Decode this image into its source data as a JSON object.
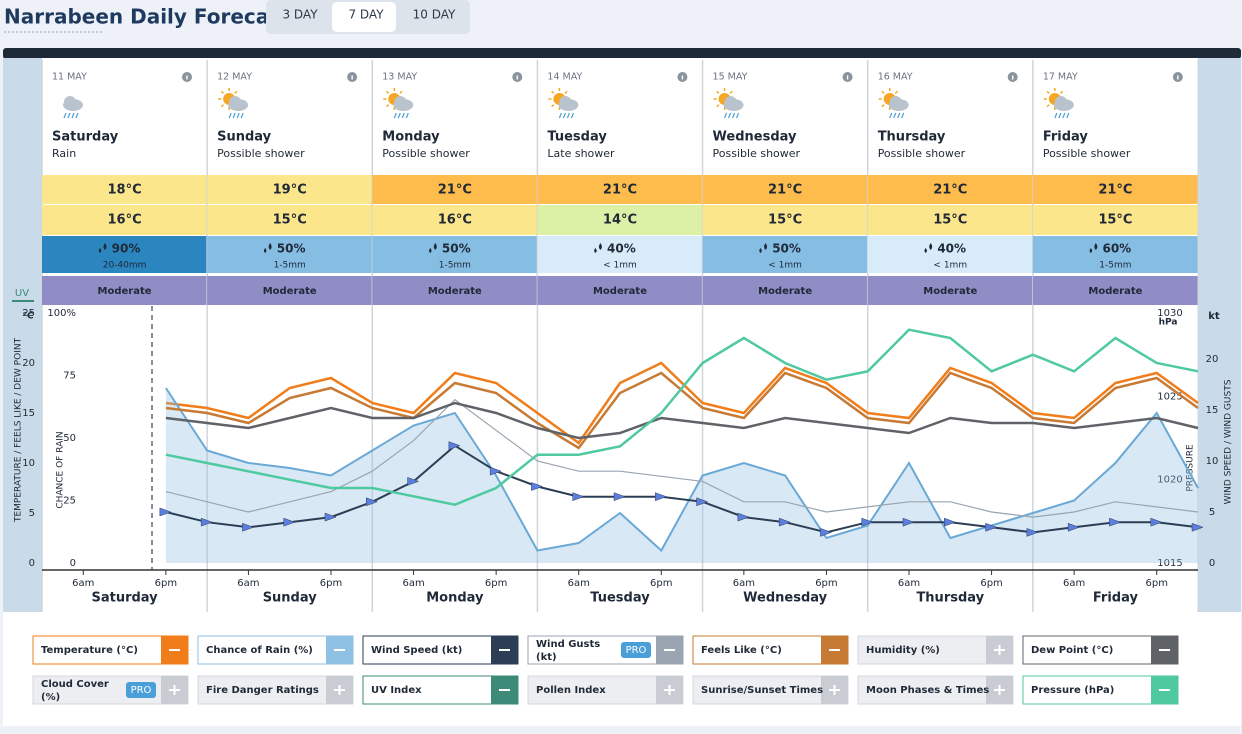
{
  "header": {
    "title": "Narrabeen Daily Forecast",
    "tabs": [
      "3 DAY",
      "7 DAY",
      "10 DAY"
    ],
    "active_tab": 1
  },
  "uv_label": "UV",
  "days": [
    {
      "date": "11 MAY",
      "name": "Saturday",
      "summary": "Rain",
      "icon": "rain",
      "max": "18°C",
      "min": "16°C",
      "rain": "90%",
      "rain_amount": "20-40mm",
      "uv": "Moderate",
      "max_color": "#fce68b",
      "min_color": "#fce68b",
      "rain_color": "#2b86c0"
    },
    {
      "date": "12 MAY",
      "name": "Sunday",
      "summary": "Possible shower",
      "icon": "sun-shower",
      "max": "19°C",
      "min": "15°C",
      "rain": "50%",
      "rain_amount": "1-5mm",
      "uv": "Moderate",
      "max_color": "#fce68b",
      "min_color": "#fce68b",
      "rain_color": "#86bde3"
    },
    {
      "date": "13 MAY",
      "name": "Monday",
      "summary": "Possible shower",
      "icon": "sun-shower",
      "max": "21°C",
      "min": "16°C",
      "rain": "50%",
      "rain_amount": "1-5mm",
      "uv": "Moderate",
      "max_color": "#fdbc4b",
      "min_color": "#fce68b",
      "rain_color": "#86bde3"
    },
    {
      "date": "14 MAY",
      "name": "Tuesday",
      "summary": "Late shower",
      "icon": "sun-shower",
      "max": "21°C",
      "min": "14°C",
      "rain": "40%",
      "rain_amount": "< 1mm",
      "uv": "Moderate",
      "max_color": "#fdbc4b",
      "min_color": "#dcf1a6",
      "rain_color": "#d7ebf8"
    },
    {
      "date": "15 MAY",
      "name": "Wednesday",
      "summary": "Possible shower",
      "icon": "sun-shower",
      "max": "21°C",
      "min": "15°C",
      "rain": "50%",
      "rain_amount": "< 1mm",
      "uv": "Moderate",
      "max_color": "#fdbc4b",
      "min_color": "#fce68b",
      "rain_color": "#86bde3"
    },
    {
      "date": "16 MAY",
      "name": "Thursday",
      "summary": "Possible shower",
      "icon": "sun-shower",
      "max": "21°C",
      "min": "15°C",
      "rain": "40%",
      "rain_amount": "< 1mm",
      "uv": "Moderate",
      "max_color": "#fdbc4b",
      "min_color": "#fce68b",
      "rain_color": "#d7ebf8"
    },
    {
      "date": "17 MAY",
      "name": "Friday",
      "summary": "Possible shower",
      "icon": "sun-shower",
      "max": "21°C",
      "min": "15°C",
      "rain": "60%",
      "rain_amount": "1-5mm",
      "uv": "Moderate",
      "max_color": "#fdbc4b",
      "min_color": "#fce68b",
      "rain_color": "#86bde3"
    }
  ],
  "chart_data": {
    "type": "line",
    "y_title": "TEMPERATURE / FEELS LIKE / DEW POINT",
    "y_unit": "°C",
    "rain_title": "CHANCE OF RAIN",
    "pressure_title": "PRESSURE",
    "pressure_unit": "hPa",
    "wind_title": "WIND SPEED / WIND GUSTS",
    "wind_unit": "kt",
    "xlim": [
      0,
      168
    ],
    "xticks": [
      {
        "value": 6,
        "label": "6am"
      },
      {
        "value": 18,
        "label": "6pm"
      },
      {
        "value": 30,
        "label": "6am"
      },
      {
        "value": 42,
        "label": "6pm"
      },
      {
        "value": 54,
        "label": "6am"
      },
      {
        "value": 66,
        "label": "6pm"
      },
      {
        "value": 78,
        "label": "6am"
      },
      {
        "value": 90,
        "label": "6pm"
      },
      {
        "value": 102,
        "label": "6am"
      },
      {
        "value": 114,
        "label": "6pm"
      },
      {
        "value": 126,
        "label": "6am"
      },
      {
        "value": 138,
        "label": "6pm"
      },
      {
        "value": 150,
        "label": "6am"
      },
      {
        "value": 162,
        "label": "6pm"
      }
    ],
    "x": [
      18,
      24,
      30,
      36,
      42,
      48,
      54,
      60,
      66,
      72,
      78,
      84,
      90,
      96,
      102,
      108,
      114,
      120,
      126,
      132,
      138,
      144,
      150,
      156,
      162,
      168
    ],
    "ylim": [
      0,
      25
    ],
    "yticks": [
      0,
      5,
      10,
      15,
      20,
      25
    ],
    "rainlim": [
      0,
      100
    ],
    "rainticks": [
      0,
      25,
      50,
      75,
      {
        "value": 100,
        "label": "100%"
      }
    ],
    "windlim": [
      0,
      24.5
    ],
    "windticks": [
      0,
      5,
      10,
      15,
      20
    ],
    "pressurelim": [
      1015,
      1030
    ],
    "pressureticks": [
      1015,
      1020,
      1025,
      1030
    ],
    "series": [
      {
        "name": "Temperature (°C)",
        "color": "#f07d1a",
        "on": true,
        "axis": "y",
        "values": [
          16,
          15.5,
          14.5,
          17.5,
          18.5,
          16,
          15,
          19,
          18,
          15,
          12,
          18,
          20,
          16,
          15,
          19.5,
          18,
          15,
          14.5,
          19.5,
          18,
          15,
          14.5,
          18,
          19,
          16
        ]
      },
      {
        "name": "Chance of Rain (%)",
        "color": "#8ec1e3",
        "on": true,
        "axis": "rain",
        "values": [
          70,
          45,
          40,
          38,
          35,
          45,
          55,
          60,
          35,
          5,
          8,
          20,
          5,
          35,
          40,
          35,
          10,
          15,
          40,
          10,
          15,
          20,
          25,
          40,
          60,
          30
        ]
      },
      {
        "name": "Wind Speed (kt)",
        "color": "#2c3e55",
        "on": true,
        "axis": "wind",
        "values": [
          5,
          4,
          3.5,
          4,
          4.5,
          6,
          8,
          11.5,
          9,
          7.5,
          6.5,
          6.5,
          6.5,
          6,
          4.5,
          4,
          3,
          4,
          4,
          4,
          3.5,
          3,
          3.5,
          4,
          4,
          3.5
        ]
      },
      {
        "name": "Wind Gusts (kt)",
        "color": "#9aa5b1",
        "on": true,
        "badge": "PRO",
        "axis": "wind",
        "values": [
          7,
          6,
          5,
          6,
          7,
          9,
          12,
          16,
          13,
          10,
          9,
          9,
          8.5,
          8,
          6,
          6,
          5,
          5.5,
          6,
          6,
          5,
          4.5,
          5,
          6,
          5.5,
          5
        ]
      },
      {
        "name": "Feels Like (°C)",
        "color": "#c77a34",
        "on": true,
        "axis": "y",
        "values": [
          15.5,
          15,
          14,
          16.5,
          17.5,
          15.5,
          14.5,
          18,
          17,
          14,
          11.5,
          17,
          19,
          15.5,
          14.5,
          19,
          17.5,
          14.5,
          14,
          19,
          17.5,
          14.5,
          14,
          17.5,
          18.5,
          15.5
        ]
      },
      {
        "name": "Humidity (%)",
        "color": "#c3c8cf",
        "on": false
      },
      {
        "name": "Dew Point (°C)",
        "color": "#5f6368",
        "on": true,
        "axis": "y",
        "values": [
          14.5,
          14,
          13.5,
          14.5,
          15.5,
          14.5,
          14.5,
          16,
          15,
          13.5,
          12.5,
          13,
          14.5,
          14,
          13.5,
          14.5,
          14,
          13.5,
          13,
          14.5,
          14,
          14,
          13.5,
          14,
          14.5,
          13.5
        ]
      },
      {
        "name": "Cloud Cover (%)",
        "color": "#c3c8cf",
        "on": false,
        "badge": "PRO"
      },
      {
        "name": "Fire Danger Ratings",
        "color": "#c3c8cf",
        "on": false
      },
      {
        "name": "UV Index",
        "color": "#3c8a77",
        "on": true
      },
      {
        "name": "Pollen Index",
        "color": "#c3c8cf",
        "on": false
      },
      {
        "name": "Sunrise/Sunset Times",
        "color": "#c3c8cf",
        "on": false
      },
      {
        "name": "Moon Phases & Times",
        "color": "#c3c8cf",
        "on": false
      },
      {
        "name": "Pressure (hPa)",
        "color": "#4fc9a0",
        "on": true,
        "axis": "pressure",
        "values": [
          1021.5,
          1021,
          1020.5,
          1020,
          1019.5,
          1019.5,
          1019,
          1018.5,
          1019.5,
          1021.5,
          1021.5,
          1022,
          1024,
          1027,
          1028.5,
          1027,
          1026,
          1026.5,
          1029,
          1028.5,
          1026.5,
          1027.5,
          1026.5,
          1028.5,
          1027,
          1026.5
        ]
      }
    ]
  }
}
